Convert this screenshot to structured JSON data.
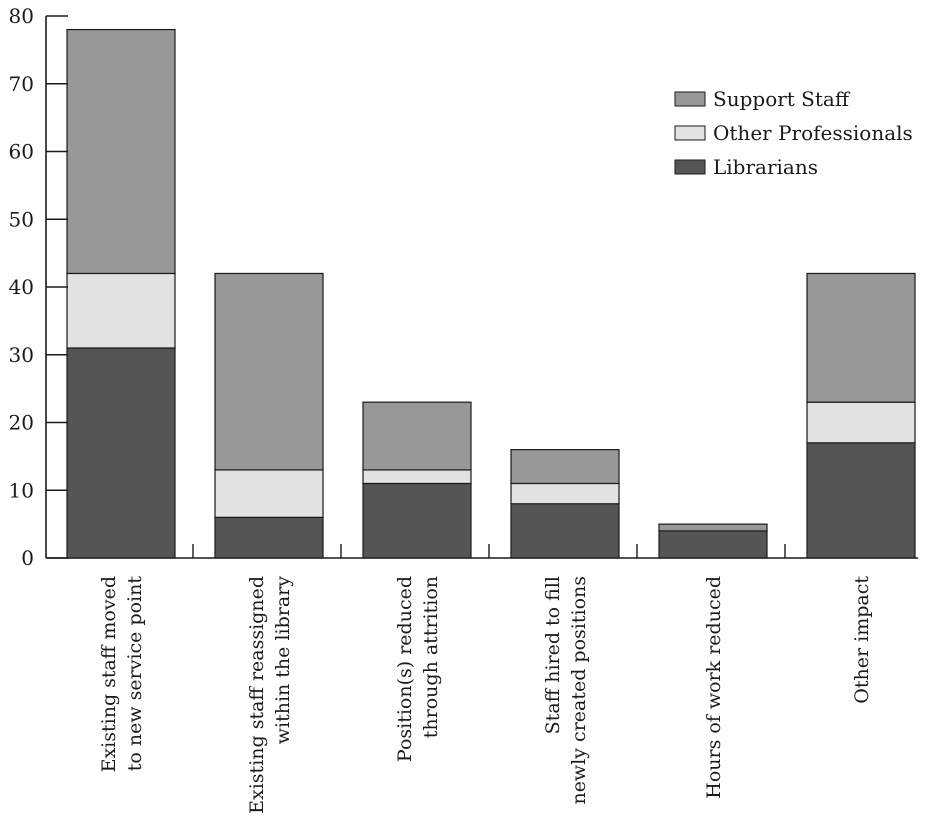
{
  "chart_data": {
    "type": "bar",
    "stacked": true,
    "categories": [
      [
        "Existing staff moved",
        "to new service point"
      ],
      [
        "Existing staff reassigned",
        "within the library"
      ],
      [
        "Position(s) reduced",
        "through attrition"
      ],
      [
        "Staff hired to fill",
        "newly created positions"
      ],
      [
        "Hours of work reduced"
      ],
      [
        "Other impact"
      ]
    ],
    "series": [
      {
        "name": "Librarians",
        "values": [
          31,
          6,
          11,
          8,
          4,
          17
        ],
        "color": "#555558"
      },
      {
        "name": "Other Professionals",
        "values": [
          11,
          7,
          2,
          3,
          0,
          6
        ],
        "color": "#e2e2e4"
      },
      {
        "name": "Support Staff",
        "values": [
          36,
          29,
          10,
          5,
          1,
          19
        ],
        "color": "#98989b"
      }
    ],
    "legend_order": [
      "Support Staff",
      "Other Professionals",
      "Librarians"
    ],
    "legend_position": "top-right",
    "ylim": [
      0,
      80
    ],
    "yticks": [
      0,
      10,
      20,
      30,
      40,
      50,
      60,
      70,
      80
    ],
    "grid": false,
    "title": "",
    "xlabel": "",
    "ylabel": ""
  }
}
